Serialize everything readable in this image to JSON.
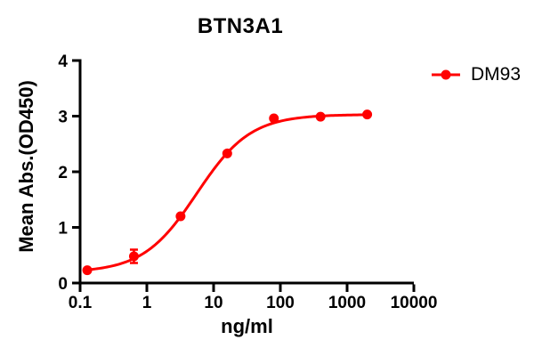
{
  "page": {
    "background": "#ffffff",
    "text_color": "#000000"
  },
  "chart_data": {
    "type": "scatter",
    "title": "BTN3A1",
    "xlabel": "ng/ml",
    "ylabel": "Mean Abs.(OD450)",
    "x_scale": "log10",
    "xlim": [
      0.1,
      10000
    ],
    "ylim": [
      0,
      4
    ],
    "grid": false,
    "x_ticks": {
      "values": [
        0.1,
        1,
        10,
        100,
        1000,
        10000
      ],
      "labels": [
        "0.1",
        "1",
        "10",
        "100",
        "1000",
        "10000"
      ]
    },
    "y_ticks": {
      "values": [
        0,
        1,
        2,
        3,
        4
      ],
      "labels": [
        "0",
        "1",
        "2",
        "3",
        "4"
      ]
    },
    "legend_position": "outside-top-right",
    "series": [
      {
        "name": "DM93",
        "color": "#FF0000",
        "marker": "circle",
        "x": [
          0.128,
          0.64,
          3.2,
          16,
          80,
          400,
          2000
        ],
        "y": [
          0.23,
          0.48,
          1.2,
          2.33,
          2.96,
          2.99,
          3.03
        ],
        "y_err": [
          0,
          0.12,
          0,
          0,
          0,
          0,
          0
        ],
        "fit": {
          "model": "4PL",
          "bottom": 0.19,
          "top": 3.03,
          "ec50": 5.6,
          "hill": 1.08,
          "draw_range": [
            0.128,
            2000
          ]
        }
      }
    ]
  }
}
